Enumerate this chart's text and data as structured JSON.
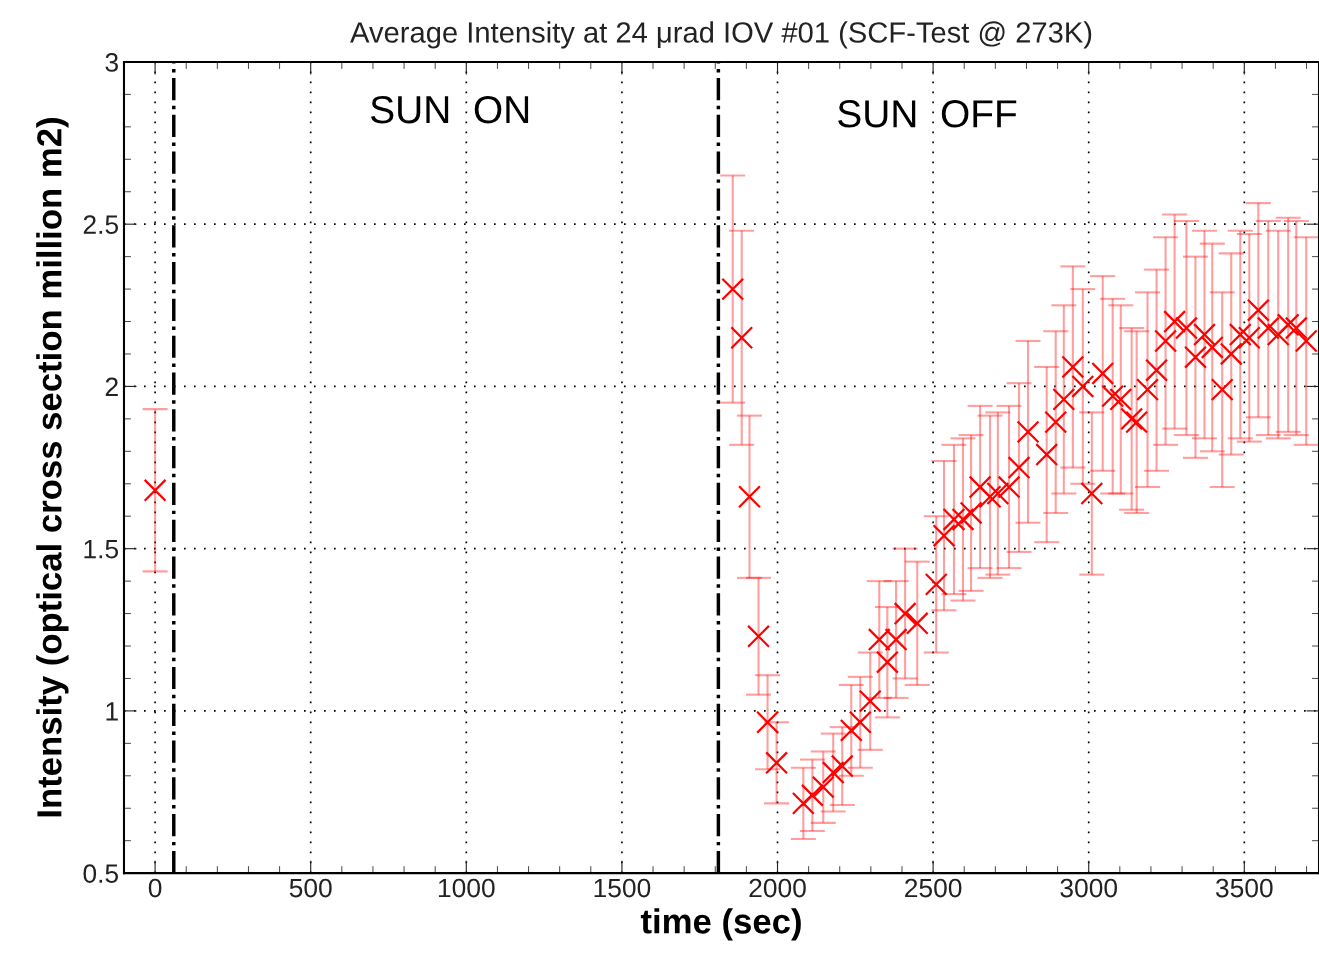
{
  "chart_data": {
    "type": "scatter",
    "title": "Average Intensity at 24 μrad IOV #01 (SCF-Test @ 273K)",
    "xlabel": "time (sec)",
    "ylabel": "Intensity (optical cross section million m2)",
    "series": [
      {
        "color": "#ff0000",
        "x": [
          0,
          1856,
          1885,
          1910,
          1939,
          1968,
          1997,
          2083,
          2112,
          2147,
          2179,
          2208,
          2237,
          2266,
          2298,
          2327,
          2353,
          2381,
          2410,
          2449,
          2510,
          2535,
          2567,
          2596,
          2622,
          2651,
          2683,
          2708,
          2744,
          2776,
          2805,
          2865,
          2894,
          2920,
          2949,
          2981,
          3010,
          3045,
          3077,
          3103,
          3138,
          3154,
          3189,
          3218,
          3247,
          3276,
          3314,
          3343,
          3372,
          3397,
          3429,
          3458,
          3487,
          3516,
          3545,
          3577,
          3609,
          3641,
          3667,
          3699
        ],
        "values": [
          1.68,
          2.3,
          2.15,
          1.66,
          1.23,
          0.965,
          0.84,
          0.715,
          0.74,
          0.765,
          0.81,
          0.83,
          0.94,
          0.965,
          1.03,
          1.22,
          1.15,
          1.22,
          1.3,
          1.27,
          1.39,
          1.54,
          1.59,
          1.59,
          1.61,
          1.69,
          1.66,
          1.67,
          1.69,
          1.75,
          1.86,
          1.79,
          1.89,
          1.96,
          2.06,
          2.0,
          1.67,
          2.04,
          1.97,
          1.96,
          1.9,
          1.89,
          1.99,
          2.05,
          2.14,
          2.2,
          2.18,
          2.09,
          2.16,
          2.12,
          1.99,
          2.1,
          2.16,
          2.15,
          2.235,
          2.18,
          2.16,
          2.19,
          2.18,
          2.14
        ],
        "errors": [
          0.25,
          0.35,
          0.33,
          0.25,
          0.18,
          0.145,
          0.125,
          0.11,
          0.11,
          0.11,
          0.12,
          0.12,
          0.14,
          0.14,
          0.15,
          0.18,
          0.17,
          0.18,
          0.2,
          0.19,
          0.21,
          0.23,
          0.23,
          0.25,
          0.24,
          0.25,
          0.25,
          0.25,
          0.25,
          0.26,
          0.28,
          0.27,
          0.28,
          0.29,
          0.31,
          0.3,
          0.25,
          0.3,
          0.3,
          0.29,
          0.28,
          0.28,
          0.3,
          0.31,
          0.32,
          0.33,
          0.33,
          0.31,
          0.32,
          0.32,
          0.3,
          0.31,
          0.32,
          0.32,
          0.33,
          0.33,
          0.32,
          0.33,
          0.33,
          0.32
        ]
      }
    ],
    "xlim": [
      -100,
      3740
    ],
    "ylim": [
      0.5,
      3
    ],
    "xticks": [
      0,
      500,
      1000,
      1500,
      2000,
      2500,
      3000,
      3500
    ],
    "yticks": [
      0.5,
      1,
      1.5,
      2,
      2.5,
      3
    ],
    "ref_lines": [
      {
        "axis": "x",
        "value": 60,
        "color": "#000000",
        "line_style": "dashdot"
      },
      {
        "axis": "x",
        "value": 1810,
        "color": "#000000",
        "line_style": "dashdot"
      }
    ],
    "annotations": [
      "SUN  ON",
      "SUN  OFF"
    ],
    "grid": true,
    "marker": "cross",
    "line_style": "none",
    "legend": false
  }
}
